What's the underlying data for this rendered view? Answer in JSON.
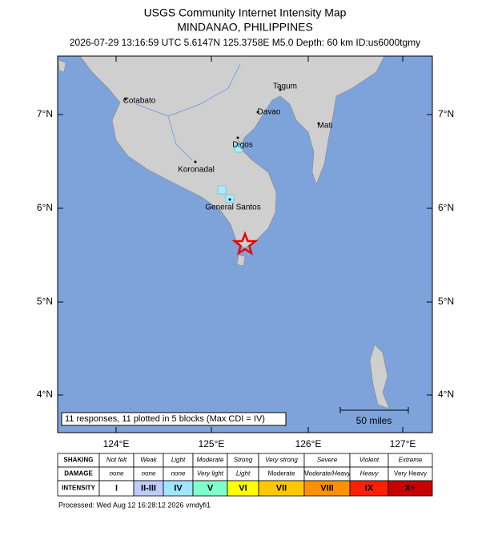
{
  "header": {
    "title": "USGS Community Internet Intensity Map",
    "region": "MINDANAO, PHILIPPINES",
    "details": "2026-07-29 13:16:59 UTC 5.6147N 125.3758E M5.0 Depth: 60 km ID:us6000tgmy"
  },
  "map": {
    "places": [
      "Cotabato",
      "Tagum",
      "Davao",
      "Mati",
      "Digos",
      "Koronadal",
      "General Santos"
    ],
    "lat_labels": [
      "7°N",
      "6°N",
      "5°N",
      "4°N"
    ],
    "lon_labels": [
      "124°E",
      "125°E",
      "126°E",
      "127°E"
    ],
    "scale_label": "50 miles",
    "summary": "11 responses, 11 plotted in 5 blocks (Max CDI = IV)"
  },
  "legend": {
    "rows": [
      {
        "label": "SHAKING",
        "cells": [
          "Not felt",
          "Weak",
          "Light",
          "Moderate",
          "Strong",
          "Very strong",
          "Severe",
          "Violent",
          "Extreme"
        ]
      },
      {
        "label": "DAMAGE",
        "cells": [
          "none",
          "none",
          "none",
          "Very light",
          "Light",
          "Moderate",
          "Moderate/Heavy",
          "Heavy",
          "Very Heavy"
        ]
      },
      {
        "label": "INTENSITY",
        "cells": [
          "I",
          "II-III",
          "IV",
          "V",
          "VI",
          "VII",
          "VIII",
          "IX",
          "X+"
        ]
      }
    ]
  },
  "footer": "Processed: Wed Aug 12 16:28:12 2026 vmdyfi1"
}
